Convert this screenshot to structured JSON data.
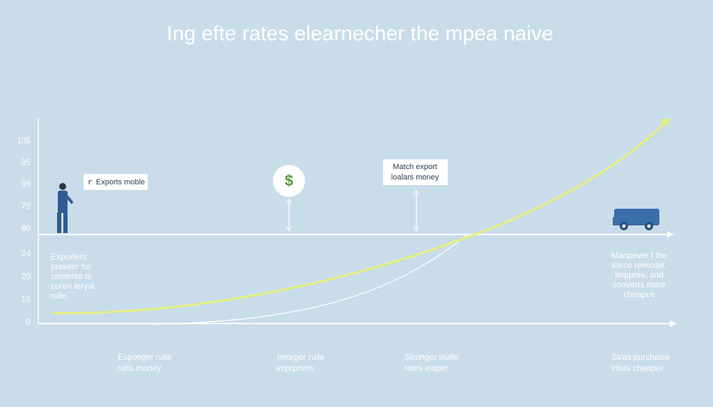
{
  "header": {
    "title": "Ing efte rates elearnecher the mpea naive"
  },
  "axis_labels": [
    "105",
    "85",
    "96",
    "75",
    "80",
    "24",
    "20",
    "10",
    "0"
  ],
  "callouts": {
    "person": "ｒ Exports moble",
    "box": [
      "Match export",
      "loalars money"
    ],
    "icon": "$"
  },
  "left_note": [
    "Exporters",
    "prexeer for",
    "conterlal ts",
    "curen teryal",
    "rulle."
  ],
  "right_note": [
    "Manpever f the",
    "sarce revoater,",
    "Imppres, and",
    "converts more",
    "cheapce"
  ],
  "bottom_captions": [
    [
      "Exponger rulle",
      "ratts money"
    ],
    [
      "Imorger rulle",
      "imprprters"
    ],
    [
      "Stronger inulle",
      "rates elaper"
    ],
    [
      "Stras purchaise",
      "inluts cheaper"
    ]
  ]
}
